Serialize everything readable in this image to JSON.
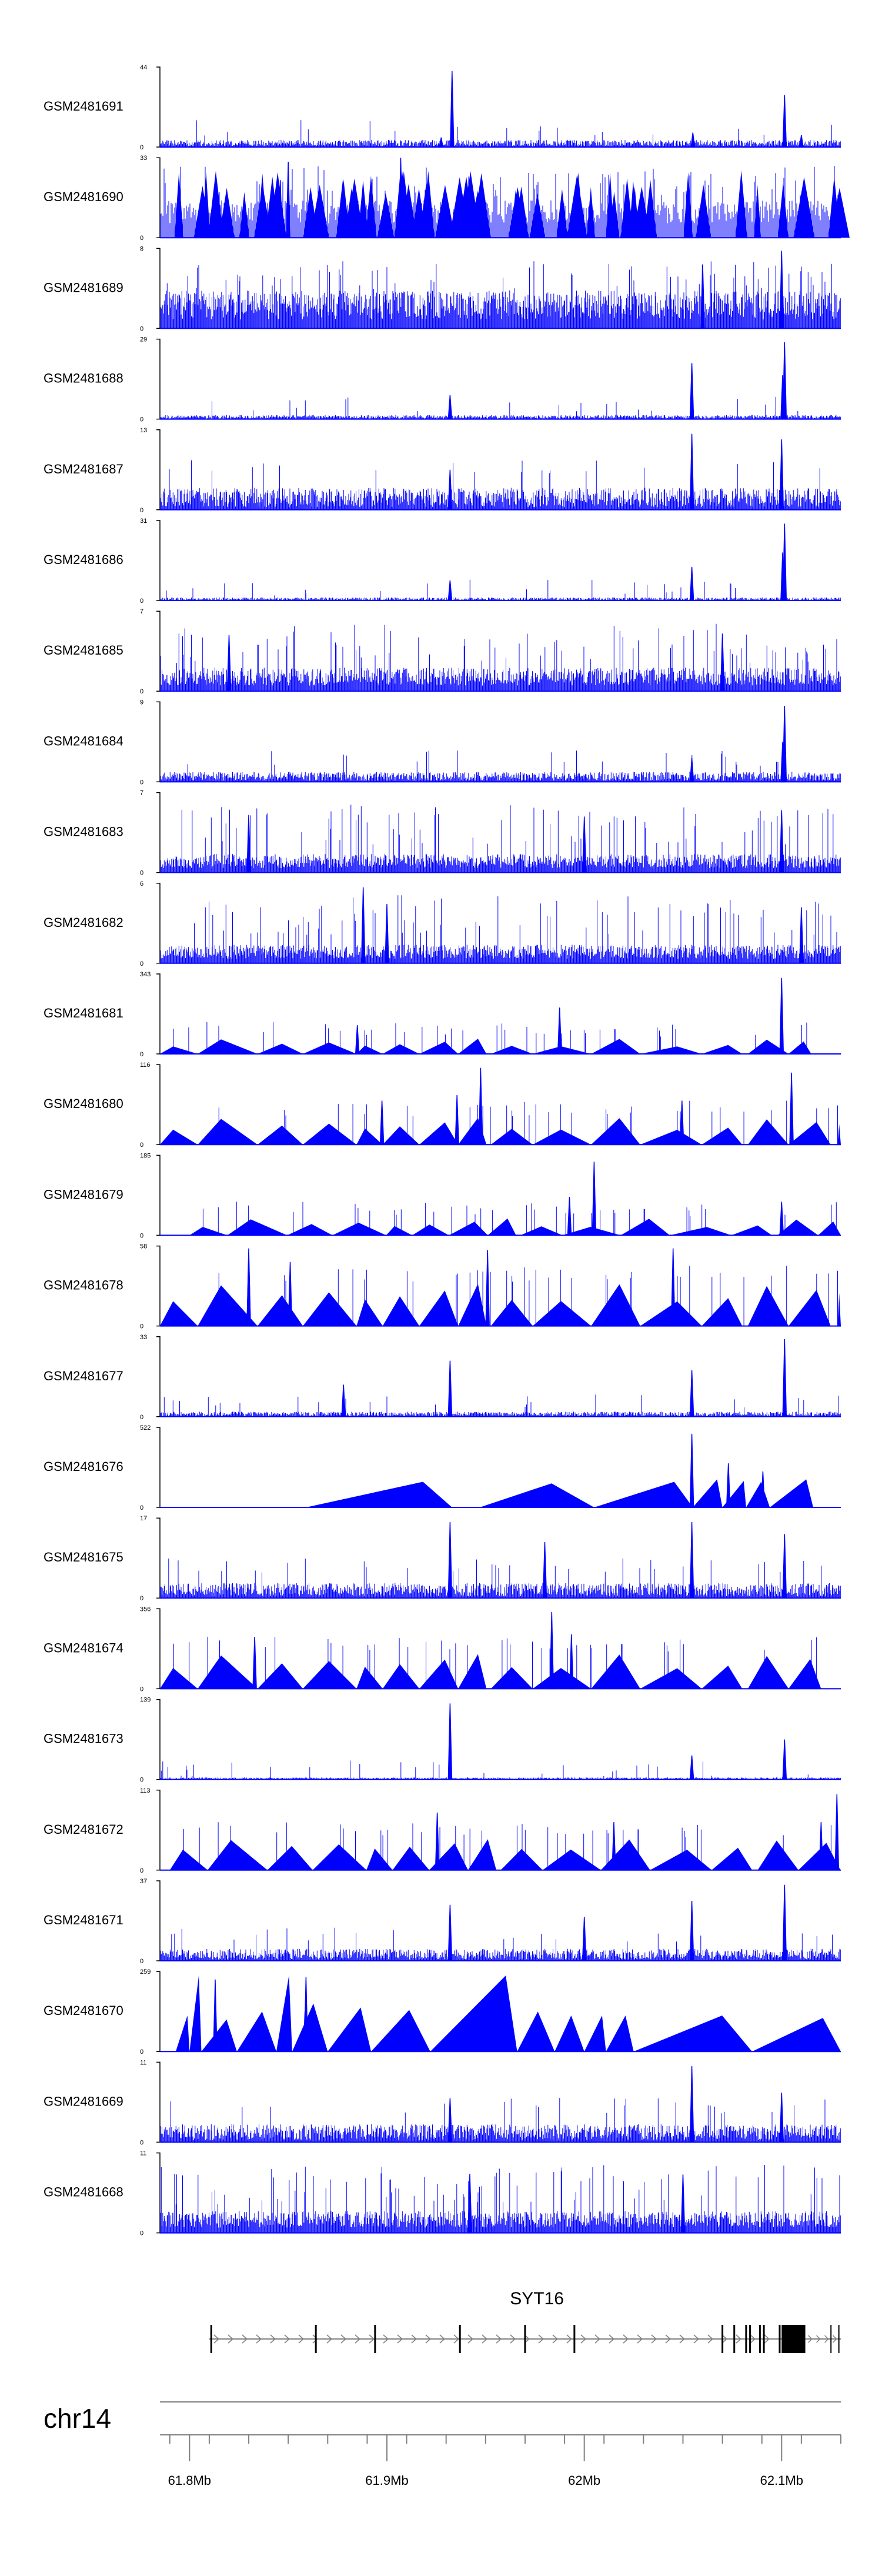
{
  "chart_data": {
    "type": "genome-tracks",
    "title": "",
    "chromosome": "chr14",
    "xlim_mb": [
      61.785,
      62.13
    ],
    "colors": {
      "signal": "#0000ff",
      "axis": "#000000",
      "ruler": "#808080"
    },
    "tracks": [
      {
        "name": "GSM2481691",
        "ymax": "44",
        "ymin": "0",
        "max": 44,
        "style": "dense",
        "base": 0.07,
        "peaks": [
          [
            61.933,
            0.95
          ],
          [
            62.1015,
            0.65
          ],
          [
            61.9275,
            0.12
          ],
          [
            62.055,
            0.18
          ],
          [
            62.11,
            0.15
          ]
        ]
      },
      {
        "name": "GSM2481690",
        "ymax": "33",
        "ymin": "0",
        "max": 33,
        "style": "jagged",
        "base": 0.36,
        "peaks": [
          [
            61.907,
            1.0
          ],
          [
            61.846,
            0.72
          ],
          [
            61.85,
            0.95
          ]
        ]
      },
      {
        "name": "GSM2481689",
        "ymax": "8",
        "ymin": "0",
        "max": 8,
        "style": "noisy",
        "base": 0.45,
        "peaks": [
          [
            62.1,
            0.97
          ],
          [
            62.06,
            0.8
          ]
        ]
      },
      {
        "name": "GSM2481688",
        "ymax": "29",
        "ymin": "0",
        "max": 29,
        "style": "dense",
        "base": 0.04,
        "peaks": [
          [
            62.1015,
            0.96
          ],
          [
            62.0545,
            0.7
          ],
          [
            61.932,
            0.3
          ],
          [
            62.1005,
            0.55
          ]
        ]
      },
      {
        "name": "GSM2481687",
        "ymax": "13",
        "ymin": "0",
        "max": 13,
        "style": "dense",
        "base": 0.22,
        "peaks": [
          [
            62.0545,
            0.95
          ],
          [
            62.1,
            0.88
          ],
          [
            61.932,
            0.5
          ]
        ]
      },
      {
        "name": "GSM2481686",
        "ymax": "31",
        "ymin": "0",
        "max": 31,
        "style": "dense",
        "base": 0.03,
        "peaks": [
          [
            62.1015,
            0.96
          ],
          [
            62.0545,
            0.42
          ],
          [
            61.932,
            0.25
          ],
          [
            62.1005,
            0.6
          ]
        ]
      },
      {
        "name": "GSM2481685",
        "ymax": "7",
        "ymin": "0",
        "max": 7,
        "style": "noisy",
        "base": 0.28,
        "peaks": [
          [
            61.82,
            0.7
          ],
          [
            62.07,
            0.72
          ]
        ]
      },
      {
        "name": "GSM2481684",
        "ymax": "9",
        "ymin": "0",
        "max": 9,
        "style": "dense",
        "base": 0.1,
        "peaks": [
          [
            62.1015,
            0.95
          ],
          [
            62.1005,
            0.5
          ],
          [
            62.0545,
            0.3
          ]
        ]
      },
      {
        "name": "GSM2481683",
        "ymax": "7",
        "ymin": "0",
        "max": 7,
        "style": "noisy",
        "base": 0.22,
        "peaks": [
          [
            62.1,
            0.78
          ],
          [
            61.83,
            0.72
          ],
          [
            62.0,
            0.7
          ]
        ]
      },
      {
        "name": "GSM2481682",
        "ymax": "6",
        "ymin": "0",
        "max": 6,
        "style": "noisy",
        "base": 0.22,
        "peaks": [
          [
            61.888,
            0.95
          ],
          [
            62.11,
            0.7
          ],
          [
            61.9,
            0.74
          ]
        ]
      },
      {
        "name": "GSM2481681",
        "ymax": "343",
        "ymin": "0",
        "max": 343,
        "style": "tri",
        "start": 61.785,
        "end": 62.115,
        "tmin": 0.09,
        "tmax": 0.2,
        "seed": 81,
        "peaks": [
          [
            62.1,
            0.95
          ],
          [
            61.9875,
            0.58
          ],
          [
            61.885,
            0.36
          ]
        ]
      },
      {
        "name": "GSM2481680",
        "ymax": "116",
        "ymin": "0",
        "max": 116,
        "style": "tri",
        "start": 61.785,
        "end": 62.13,
        "tmin": 0.18,
        "tmax": 0.35,
        "seed": 80,
        "peaks": [
          [
            61.9475,
            0.96
          ],
          [
            62.105,
            0.9
          ],
          [
            61.9355,
            0.62
          ],
          [
            61.8975,
            0.55
          ],
          [
            62.0495,
            0.55
          ]
        ]
      },
      {
        "name": "GSM2481679",
        "ymax": "185",
        "ymin": "0",
        "max": 185,
        "style": "tri",
        "start": 61.8,
        "end": 62.13,
        "tmin": 0.1,
        "tmax": 0.22,
        "seed": 79,
        "peaks": [
          [
            62.005,
            0.92
          ],
          [
            61.9925,
            0.48
          ],
          [
            62.1,
            0.42
          ]
        ]
      },
      {
        "name": "GSM2481678",
        "ymax": "58",
        "ymin": "0",
        "max": 58,
        "style": "tri",
        "start": 61.785,
        "end": 62.13,
        "tmin": 0.3,
        "tmax": 0.55,
        "seed": 78,
        "peaks": [
          [
            61.83,
            0.97
          ],
          [
            61.83,
            0.9
          ],
          [
            62.045,
            0.97
          ],
          [
            61.951,
            0.95
          ],
          [
            61.851,
            0.8
          ]
        ]
      },
      {
        "name": "GSM2481677",
        "ymax": "33",
        "ymin": "0",
        "max": 33,
        "style": "dense",
        "base": 0.05,
        "peaks": [
          [
            62.1015,
            0.97
          ],
          [
            61.932,
            0.7
          ],
          [
            62.0545,
            0.58
          ],
          [
            61.878,
            0.4
          ]
        ]
      },
      {
        "name": "GSM2481676",
        "ymax": "522",
        "ymin": "0",
        "max": 522,
        "style": "segs",
        "segs": [
          [
            61.859,
            61.933,
            0.32
          ],
          [
            61.933,
            61.947,
            0.0
          ],
          [
            61.947,
            62.005,
            0.3
          ],
          [
            62.005,
            62.055,
            0.32
          ],
          [
            62.055,
            62.07,
            0.35
          ],
          [
            62.07,
            62.082,
            0.33
          ],
          [
            62.082,
            62.094,
            0.32
          ],
          [
            62.094,
            62.116,
            0.35
          ]
        ],
        "peaks": [
          [
            62.0545,
            0.92
          ],
          [
            62.073,
            0.55
          ],
          [
            62.0905,
            0.45
          ]
        ]
      },
      {
        "name": "GSM2481675",
        "ymax": "17",
        "ymin": "0",
        "max": 17,
        "style": "dense",
        "base": 0.15,
        "peaks": [
          [
            61.932,
            0.95
          ],
          [
            62.1015,
            0.8
          ],
          [
            62.0545,
            0.95
          ],
          [
            61.98,
            0.7
          ]
        ]
      },
      {
        "name": "GSM2481674",
        "ymax": "356",
        "ymin": "0",
        "max": 356,
        "style": "tri",
        "start": 61.785,
        "end": 62.12,
        "tmin": 0.25,
        "tmax": 0.45,
        "seed": 74,
        "peaks": [
          [
            61.9835,
            0.96
          ],
          [
            61.833,
            0.65
          ],
          [
            61.9935,
            0.68
          ]
        ]
      },
      {
        "name": "GSM2481673",
        "ymax": "139",
        "ymin": "0",
        "max": 139,
        "style": "dense",
        "base": 0.02,
        "peaks": [
          [
            61.932,
            0.95
          ],
          [
            62.1015,
            0.5
          ],
          [
            62.0545,
            0.3
          ]
        ]
      },
      {
        "name": "GSM2481672",
        "ymax": "113",
        "ymin": "0",
        "max": 113,
        "style": "tri",
        "start": 61.79,
        "end": 62.13,
        "tmin": 0.25,
        "tmax": 0.4,
        "seed": 72,
        "peaks": [
          [
            62.128,
            0.95
          ],
          [
            61.9255,
            0.72
          ],
          [
            62.015,
            0.6
          ],
          [
            62.12,
            0.6
          ]
        ]
      },
      {
        "name": "GSM2481671",
        "ymax": "37",
        "ymin": "0",
        "max": 37,
        "style": "dense",
        "base": 0.12,
        "peaks": [
          [
            62.1015,
            0.95
          ],
          [
            62.0545,
            0.75
          ],
          [
            61.932,
            0.7
          ],
          [
            62.0,
            0.55
          ]
        ]
      },
      {
        "name": "GSM2481670",
        "ymax": "259",
        "ymin": "0",
        "max": 259,
        "style": "segs",
        "segs": [
          [
            61.793,
            61.8,
            0.45
          ],
          [
            61.8,
            61.806,
            0.95
          ],
          [
            61.806,
            61.824,
            0.4
          ],
          [
            61.824,
            61.844,
            0.5
          ],
          [
            61.844,
            61.852,
            0.95
          ],
          [
            61.852,
            61.87,
            0.6
          ],
          [
            61.87,
            61.892,
            0.55
          ],
          [
            61.892,
            61.922,
            0.52
          ],
          [
            61.922,
            61.966,
            0.95
          ],
          [
            61.966,
            61.985,
            0.5
          ],
          [
            61.985,
            62.0,
            0.45
          ],
          [
            62.0,
            62.011,
            0.45
          ],
          [
            62.011,
            62.025,
            0.45
          ],
          [
            62.025,
            62.085,
            0.45
          ],
          [
            62.085,
            62.13,
            0.42
          ]
        ],
        "peaks": [
          [
            61.859,
            0.93
          ],
          [
            61.813,
            0.9
          ],
          [
            61.8585,
            0.5
          ]
        ]
      },
      {
        "name": "GSM2481669",
        "ymax": "11",
        "ymin": "0",
        "max": 11,
        "style": "dense",
        "base": 0.18,
        "peaks": [
          [
            62.0545,
            0.95
          ],
          [
            61.932,
            0.55
          ],
          [
            62.1,
            0.62
          ]
        ]
      },
      {
        "name": "GSM2481668",
        "ymax": "11",
        "ymin": "0",
        "max": 11,
        "style": "noisy",
        "base": 0.26,
        "peaks": [
          [
            61.942,
            0.74
          ],
          [
            62.05,
            0.73
          ]
        ]
      }
    ],
    "gene": {
      "name": "SYT16",
      "start": 61.81,
      "end": 62.13,
      "strand": "+",
      "exons": [
        61.811,
        61.864,
        61.894,
        61.937,
        61.97,
        61.995,
        62.07,
        62.076,
        62.082,
        62.084,
        62.089,
        62.091,
        62.099
      ],
      "utr_block": [
        62.1,
        62.112
      ],
      "tail_exons": [
        62.125,
        62.129
      ]
    },
    "axis": {
      "label": "chr14",
      "ticks": [
        {
          "mb": 61.8,
          "label": "61.8Mb"
        },
        {
          "mb": 61.9,
          "label": "61.9Mb"
        },
        {
          "mb": 62.0,
          "label": "62Mb"
        },
        {
          "mb": 62.1,
          "label": "62.1Mb"
        }
      ],
      "minor_step": 0.02
    }
  }
}
